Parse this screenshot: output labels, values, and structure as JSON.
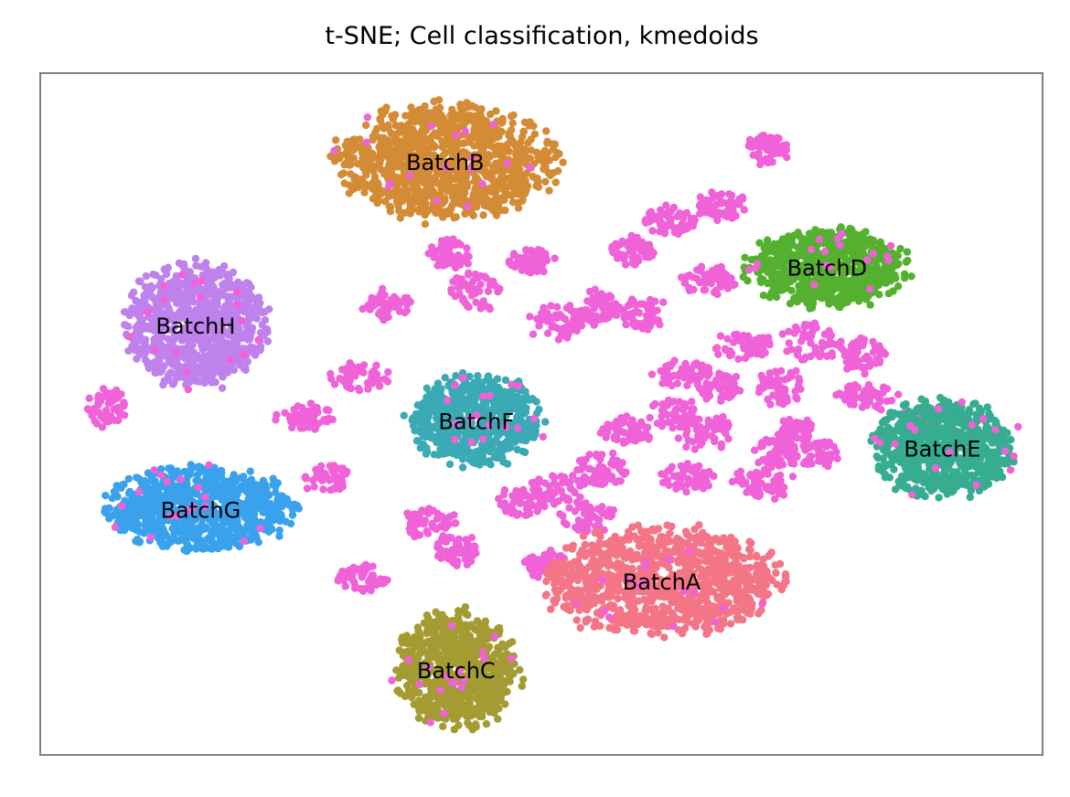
{
  "chart_data": {
    "type": "scatter",
    "title": "t-SNE; Cell classification, kmedoids",
    "xlabel": "",
    "ylabel": "",
    "axes_ticks": false,
    "grid": false,
    "legend": "none",
    "xlim": [
      0,
      100
    ],
    "ylim": [
      0,
      100
    ],
    "unlabeled_color": "#f062d8",
    "clusters": [
      {
        "label": "BatchB",
        "color": "#d48b35",
        "center": [
          40.4,
          87.0
        ],
        "spread": [
          11.5,
          9.0
        ],
        "density": 340
      },
      {
        "label": "BatchD",
        "color": "#55b030",
        "center": [
          78.5,
          71.5
        ],
        "spread": [
          8.5,
          6.0
        ],
        "density": 230
      },
      {
        "label": "BatchH",
        "color": "#bf82ed",
        "center": [
          15.5,
          63.0
        ],
        "spread": [
          7.5,
          9.5
        ],
        "density": 280
      },
      {
        "label": "BatchF",
        "color": "#3aaab5",
        "center": [
          43.5,
          49.0
        ],
        "spread": [
          7.0,
          7.0
        ],
        "density": 220
      },
      {
        "label": "BatchE",
        "color": "#36ad90",
        "center": [
          90.0,
          45.0
        ],
        "spread": [
          7.5,
          7.5
        ],
        "density": 240
      },
      {
        "label": "BatchG",
        "color": "#3aa2ec",
        "center": [
          16.0,
          36.0
        ],
        "spread": [
          10.0,
          6.5
        ],
        "density": 270
      },
      {
        "label": "BatchA",
        "color": "#f37586",
        "center": [
          62.0,
          25.5
        ],
        "spread": [
          12.5,
          8.5
        ],
        "density": 330
      },
      {
        "label": "BatchC",
        "color": "#a49c32",
        "center": [
          41.5,
          12.5
        ],
        "spread": [
          6.5,
          9.0
        ],
        "density": 240
      }
    ],
    "unlabeled_groups": [
      [
        63.0,
        78.5
      ],
      [
        68.0,
        80.5
      ],
      [
        72.5,
        89.0
      ],
      [
        41.0,
        73.5
      ],
      [
        49.0,
        72.5
      ],
      [
        59.0,
        74.0
      ],
      [
        66.5,
        69.5
      ],
      [
        34.5,
        66.0
      ],
      [
        43.5,
        68.0
      ],
      [
        51.5,
        63.5
      ],
      [
        55.5,
        65.5
      ],
      [
        60.0,
        65.0
      ],
      [
        64.0,
        56.0
      ],
      [
        70.0,
        60.0
      ],
      [
        77.0,
        60.5
      ],
      [
        82.0,
        58.5
      ],
      [
        67.5,
        54.0
      ],
      [
        74.0,
        54.0
      ],
      [
        63.0,
        50.0
      ],
      [
        32.0,
        55.5
      ],
      [
        26.5,
        49.5
      ],
      [
        58.5,
        47.5
      ],
      [
        66.5,
        47.0
      ],
      [
        73.5,
        44.5
      ],
      [
        77.0,
        44.0
      ],
      [
        72.0,
        40.0
      ],
      [
        64.5,
        40.5
      ],
      [
        56.0,
        42.0
      ],
      [
        48.0,
        37.0
      ],
      [
        51.5,
        39.0
      ],
      [
        54.5,
        35.0
      ],
      [
        50.5,
        28.0
      ],
      [
        38.5,
        34.0
      ],
      [
        41.5,
        30.0
      ],
      [
        32.0,
        26.0
      ],
      [
        28.5,
        40.5
      ],
      [
        6.5,
        51.0
      ],
      [
        82.5,
        52.5
      ],
      [
        88.5,
        49.0
      ],
      [
        75.5,
        47.5
      ]
    ]
  }
}
